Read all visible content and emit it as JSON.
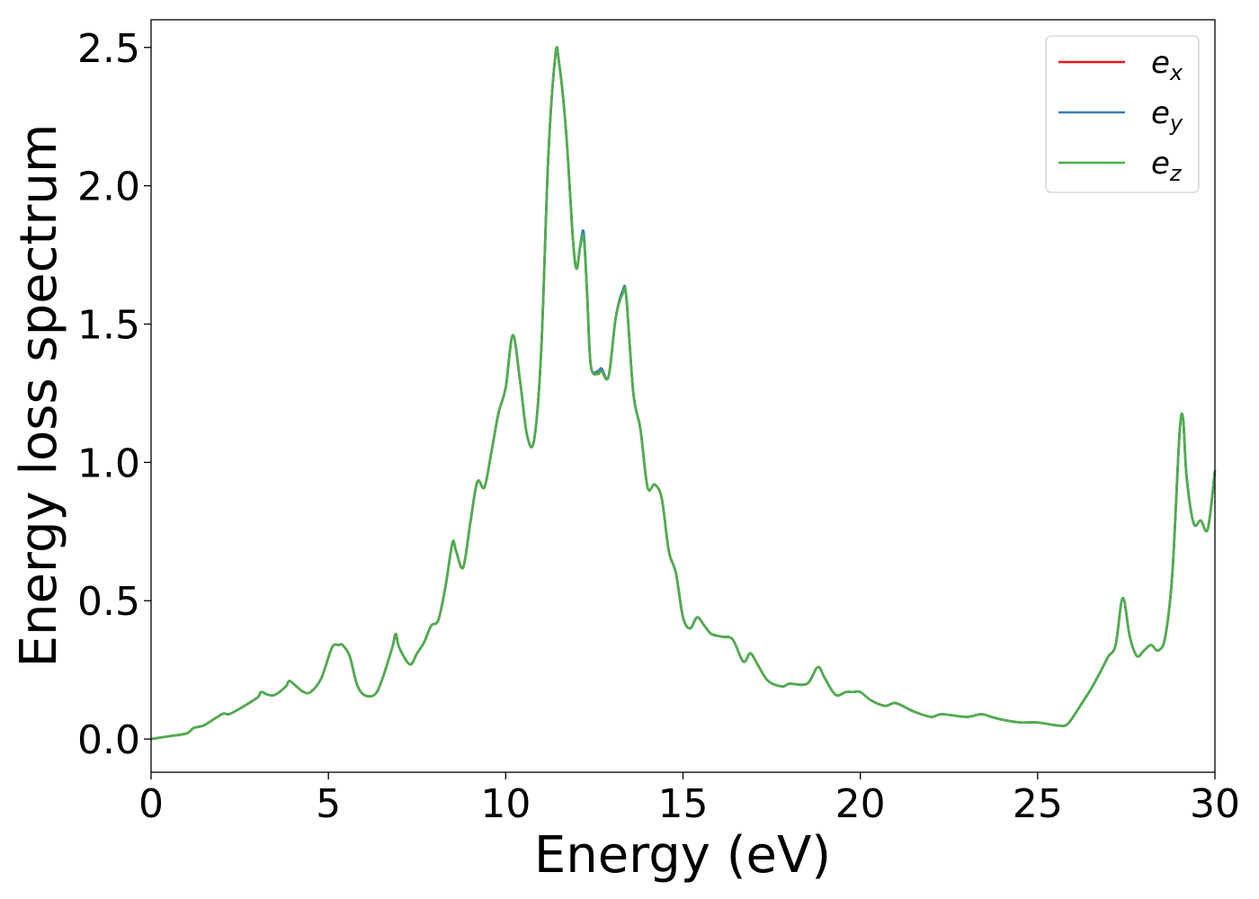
{
  "chart_data": {
    "type": "line",
    "xlabel": "Energy (eV)",
    "ylabel": "Energy loss spectrum",
    "xlim": [
      0,
      30
    ],
    "ylim": [
      -0.12,
      2.6
    ],
    "xticks": [
      0,
      5,
      10,
      15,
      20,
      25,
      30
    ],
    "xtick_labels": [
      "0",
      "5",
      "10",
      "15",
      "20",
      "25",
      "30"
    ],
    "yticks": [
      0.0,
      0.5,
      1.0,
      1.5,
      2.0,
      2.5
    ],
    "ytick_labels": [
      "0.0",
      "0.5",
      "1.0",
      "1.5",
      "2.0",
      "2.5"
    ],
    "grid": false,
    "legend_position": "top-right",
    "x": [
      0,
      0.5,
      1.0,
      1.2,
      1.5,
      2.0,
      2.2,
      2.5,
      3.0,
      3.1,
      3.3,
      3.5,
      3.8,
      3.9,
      4.1,
      4.3,
      4.5,
      4.8,
      5.1,
      5.3,
      5.4,
      5.6,
      5.8,
      6.0,
      6.3,
      6.5,
      6.8,
      6.9,
      7.0,
      7.3,
      7.5,
      7.7,
      7.9,
      8.1,
      8.3,
      8.5,
      8.6,
      8.8,
      9.0,
      9.2,
      9.4,
      9.6,
      9.8,
      10.0,
      10.2,
      10.4,
      10.6,
      10.8,
      11.0,
      11.2,
      11.4,
      11.5,
      11.7,
      11.9,
      12.0,
      12.1,
      12.2,
      12.3,
      12.4,
      12.6,
      12.7,
      12.9,
      13.1,
      13.3,
      13.4,
      13.6,
      13.8,
      14.0,
      14.2,
      14.4,
      14.6,
      14.8,
      15.0,
      15.2,
      15.4,
      15.6,
      15.8,
      16.1,
      16.4,
      16.7,
      16.9,
      17.1,
      17.4,
      17.8,
      18.0,
      18.5,
      18.8,
      19.0,
      19.3,
      19.6,
      19.8,
      20.0,
      20.3,
      20.7,
      21.0,
      21.5,
      22.0,
      22.3,
      23.0,
      23.4,
      23.7,
      24.0,
      24.5,
      25.0,
      25.5,
      25.8,
      26.0,
      26.2,
      26.5,
      26.8,
      27.0,
      27.2,
      27.4,
      27.6,
      27.8,
      28.0,
      28.2,
      28.4,
      28.6,
      28.8,
      29.0,
      29.1,
      29.2,
      29.4,
      29.6,
      29.8,
      30.0
    ],
    "series": [
      {
        "name": "e_x",
        "color": "#e41a1c",
        "values": [
          0.0,
          0.01,
          0.02,
          0.04,
          0.05,
          0.09,
          0.09,
          0.11,
          0.15,
          0.17,
          0.16,
          0.16,
          0.19,
          0.21,
          0.19,
          0.17,
          0.17,
          0.22,
          0.33,
          0.34,
          0.34,
          0.3,
          0.2,
          0.16,
          0.16,
          0.21,
          0.33,
          0.38,
          0.33,
          0.27,
          0.31,
          0.35,
          0.41,
          0.43,
          0.55,
          0.71,
          0.68,
          0.62,
          0.78,
          0.93,
          0.91,
          1.04,
          1.18,
          1.27,
          1.46,
          1.3,
          1.1,
          1.08,
          1.4,
          2.1,
          2.47,
          2.45,
          2.2,
          1.8,
          1.7,
          1.78,
          1.82,
          1.6,
          1.35,
          1.32,
          1.34,
          1.31,
          1.52,
          1.62,
          1.6,
          1.25,
          1.12,
          0.91,
          0.92,
          0.87,
          0.68,
          0.6,
          0.44,
          0.4,
          0.44,
          0.41,
          0.38,
          0.37,
          0.36,
          0.28,
          0.31,
          0.27,
          0.21,
          0.19,
          0.2,
          0.2,
          0.26,
          0.22,
          0.16,
          0.17,
          0.17,
          0.17,
          0.14,
          0.12,
          0.13,
          0.1,
          0.08,
          0.09,
          0.08,
          0.09,
          0.08,
          0.07,
          0.06,
          0.06,
          0.05,
          0.05,
          0.08,
          0.12,
          0.18,
          0.25,
          0.3,
          0.34,
          0.51,
          0.37,
          0.3,
          0.32,
          0.34,
          0.32,
          0.37,
          0.6,
          1.1,
          1.16,
          0.95,
          0.78,
          0.79,
          0.76,
          0.97
        ]
      },
      {
        "name": "e_y",
        "color": "#377eb8",
        "values": [
          0.0,
          0.01,
          0.02,
          0.04,
          0.05,
          0.09,
          0.09,
          0.11,
          0.15,
          0.17,
          0.16,
          0.16,
          0.19,
          0.21,
          0.19,
          0.17,
          0.17,
          0.22,
          0.33,
          0.34,
          0.34,
          0.3,
          0.2,
          0.16,
          0.16,
          0.21,
          0.33,
          0.38,
          0.33,
          0.27,
          0.31,
          0.35,
          0.41,
          0.43,
          0.55,
          0.71,
          0.68,
          0.62,
          0.78,
          0.93,
          0.91,
          1.04,
          1.18,
          1.27,
          1.46,
          1.3,
          1.1,
          1.08,
          1.4,
          2.1,
          2.47,
          2.45,
          2.2,
          1.8,
          1.7,
          1.78,
          1.83,
          1.6,
          1.35,
          1.33,
          1.34,
          1.31,
          1.52,
          1.62,
          1.6,
          1.25,
          1.12,
          0.91,
          0.92,
          0.87,
          0.68,
          0.6,
          0.44,
          0.4,
          0.44,
          0.41,
          0.38,
          0.37,
          0.36,
          0.28,
          0.31,
          0.27,
          0.21,
          0.19,
          0.2,
          0.2,
          0.26,
          0.22,
          0.16,
          0.17,
          0.17,
          0.17,
          0.14,
          0.12,
          0.13,
          0.1,
          0.08,
          0.09,
          0.08,
          0.09,
          0.08,
          0.07,
          0.06,
          0.06,
          0.05,
          0.05,
          0.08,
          0.12,
          0.18,
          0.25,
          0.3,
          0.34,
          0.51,
          0.37,
          0.3,
          0.32,
          0.34,
          0.32,
          0.37,
          0.6,
          1.1,
          1.16,
          0.95,
          0.78,
          0.79,
          0.76,
          0.97
        ]
      },
      {
        "name": "e_z",
        "color": "#4daf4a",
        "values": [
          0.0,
          0.01,
          0.02,
          0.04,
          0.05,
          0.09,
          0.09,
          0.11,
          0.15,
          0.17,
          0.16,
          0.16,
          0.19,
          0.21,
          0.19,
          0.17,
          0.17,
          0.22,
          0.33,
          0.34,
          0.34,
          0.3,
          0.2,
          0.16,
          0.16,
          0.21,
          0.33,
          0.38,
          0.33,
          0.27,
          0.31,
          0.35,
          0.41,
          0.43,
          0.55,
          0.71,
          0.68,
          0.62,
          0.78,
          0.93,
          0.91,
          1.04,
          1.18,
          1.27,
          1.46,
          1.3,
          1.1,
          1.08,
          1.4,
          2.1,
          2.47,
          2.45,
          2.2,
          1.8,
          1.7,
          1.78,
          1.81,
          1.6,
          1.35,
          1.32,
          1.33,
          1.31,
          1.52,
          1.61,
          1.6,
          1.25,
          1.12,
          0.91,
          0.92,
          0.87,
          0.68,
          0.6,
          0.44,
          0.4,
          0.44,
          0.41,
          0.38,
          0.37,
          0.36,
          0.28,
          0.31,
          0.27,
          0.21,
          0.19,
          0.2,
          0.2,
          0.26,
          0.22,
          0.16,
          0.17,
          0.17,
          0.17,
          0.14,
          0.12,
          0.13,
          0.1,
          0.08,
          0.09,
          0.08,
          0.09,
          0.08,
          0.07,
          0.06,
          0.06,
          0.05,
          0.05,
          0.08,
          0.12,
          0.18,
          0.25,
          0.3,
          0.34,
          0.51,
          0.37,
          0.3,
          0.32,
          0.34,
          0.32,
          0.37,
          0.6,
          1.1,
          1.16,
          0.95,
          0.78,
          0.79,
          0.76,
          0.97
        ]
      }
    ],
    "legend": [
      {
        "base": "e",
        "sub": "x",
        "color": "#e41a1c"
      },
      {
        "base": "e",
        "sub": "y",
        "color": "#377eb8"
      },
      {
        "base": "e",
        "sub": "z",
        "color": "#4daf4a"
      }
    ]
  }
}
